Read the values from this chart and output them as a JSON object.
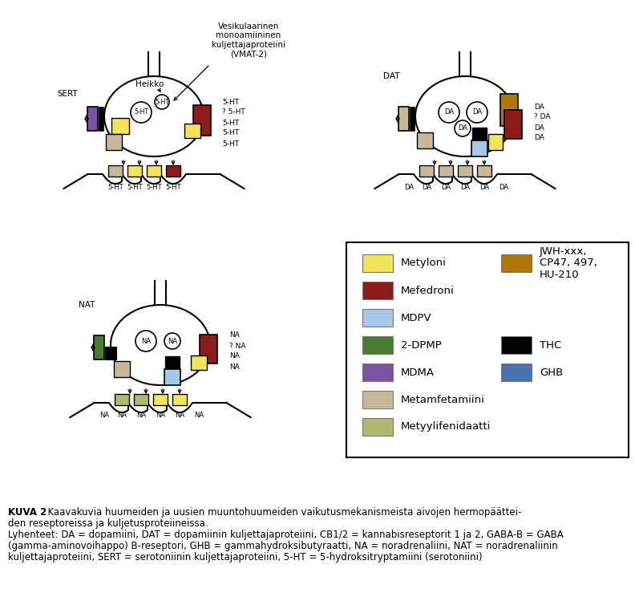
{
  "bg_color": "#ffffff",
  "caption_bold": "KUVA 2",
  "caption_rest": ". Kaavakuvia huumeiden ja uusien muuntohuumeiden vaikutusmekanismeista aivojen hermopäättei-",
  "caption_rest2": "den reseptoreissa ja kuljetusproteiineissa.",
  "caption_abbrev": "Lyhenteet: DA = dopamiini, DAT = dopamiinin kuljettajaproteiini, CB1/2 = kannabisreseptorit 1 ja 2, GABA-B = GABA",
  "caption_abbrev2": "(gamma-aminovoihappo) B-reseptori, GHB = gammahydroksibutyraatti, NA = noradrenaliini, NAT = noradrenaliinin",
  "caption_abbrev3": "kuljettajaproteiini, SERT = serotoniinin kuljettajaproteiini, 5-HT = 5-hydroksitryptamiini (serotoniini)",
  "vmat_label": "Vesikulaarinen\nmonoamiininen\nkuljettajaproteiini\n(VMAT-2)",
  "colors": {
    "yellow": "#f2e55a",
    "red": "#8c1c1c",
    "light_blue": "#a8c8e8",
    "green": "#4a7c2f",
    "purple": "#7b52a0",
    "tan": "#c8b89a",
    "olive": "#b0b870",
    "amber": "#b07808",
    "black": "#000000",
    "blue": "#4a72b0"
  },
  "legend_left": [
    {
      "color": "#f2e55a",
      "label": "Metyloni"
    },
    {
      "color": "#8c1c1c",
      "label": "Mefedroni"
    },
    {
      "color": "#a8c8e8",
      "label": "MDPV"
    },
    {
      "color": "#4a7c2f",
      "label": "2-DPMP"
    },
    {
      "color": "#7b52a0",
      "label": "MDMA"
    },
    {
      "color": "#c8b89a",
      "label": "Metamfetamiini"
    },
    {
      "color": "#b0b870",
      "label": "Metyylifenidaatti"
    }
  ],
  "legend_right": [
    {
      "color": "#b07808",
      "label": "JWH-xxx,\nCP47, 497,\nHU-210"
    },
    {
      "color": "#000000",
      "label": "THC"
    },
    {
      "color": "#4a72b0",
      "label": "GHB"
    }
  ]
}
